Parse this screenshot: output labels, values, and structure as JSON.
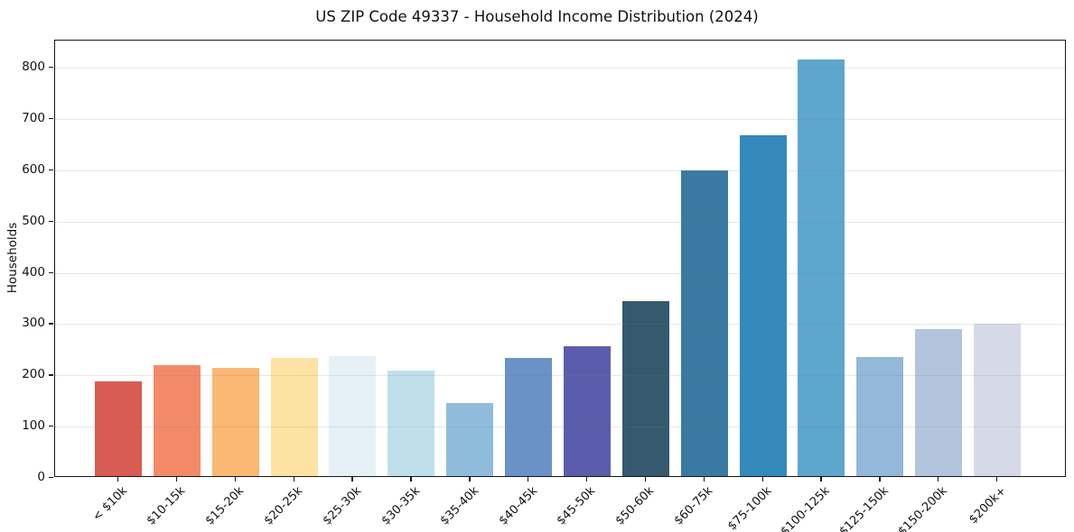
{
  "chart_data": {
    "type": "bar",
    "title": "US ZIP Code 49337 - Household Income Distribution (2024)",
    "xlabel": "",
    "ylabel": "Households",
    "categories": [
      "< $10k",
      "$10-15k",
      "$15-20k",
      "$20-25k",
      "$25-30k",
      "$30-35k",
      "$35-40k",
      "$40-45k",
      "$45-50k",
      "$50-60k",
      "$60-75k",
      "$75-100k",
      "$100-125k",
      "$125-150k",
      "$150-200k",
      "$200k+"
    ],
    "values": [
      185,
      217,
      211,
      230,
      234,
      206,
      143,
      231,
      254,
      342,
      596,
      664,
      813,
      233,
      286,
      298
    ],
    "bar_colors": [
      "#d85c52",
      "#f28a67",
      "#fab874",
      "#fde3a3",
      "#e6f1f7",
      "#bfe0ea",
      "#90bcdb",
      "#6a92c6",
      "#5c5cad",
      "#35596e",
      "#3a7aa2",
      "#338aba",
      "#5da6ce",
      "#93b8d9",
      "#b3c5dd",
      "#d6dae7"
    ],
    "yticks": [
      0,
      100,
      200,
      300,
      400,
      500,
      600,
      700,
      800
    ],
    "ylim": [
      0,
      853
    ],
    "grid": "horizontal",
    "gridline_color": "#e8e8eb",
    "axis_color": "#16161d",
    "text_color": "#111111",
    "background_color": "#ffffff",
    "legend": "none"
  }
}
